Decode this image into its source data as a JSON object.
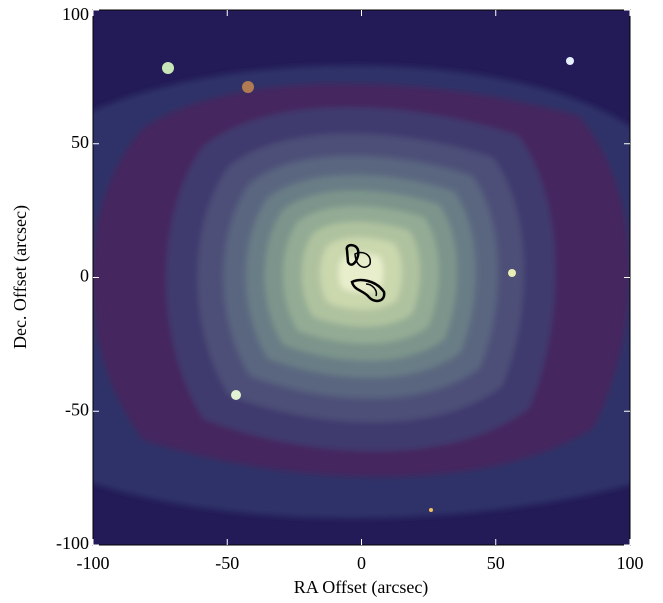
{
  "chart_data": {
    "type": "image",
    "xlabel": "RA Offset (arcsec)",
    "ylabel": "Dec. Offset (arcsec)",
    "xlim": [
      -100,
      100
    ],
    "ylim": [
      -100,
      100
    ],
    "xticks": [
      -100,
      -50,
      0,
      50,
      100
    ],
    "yticks": [
      -100,
      -50,
      0,
      50,
      100
    ]
  }
}
